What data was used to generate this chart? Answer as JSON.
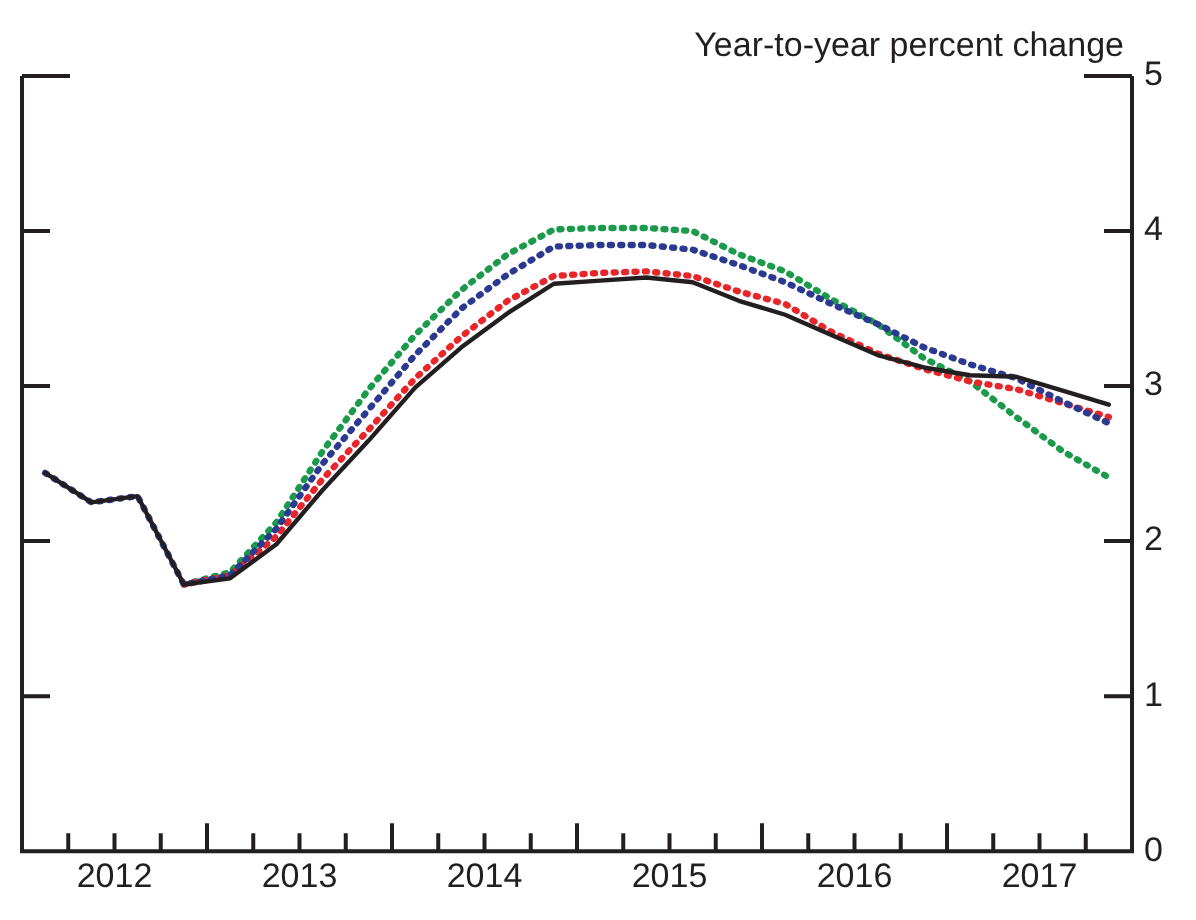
{
  "chart_data": {
    "type": "line",
    "ylabel": "Year-to-year percent change",
    "x": [
      2012.125,
      2012.375,
      2012.625,
      2012.875,
      2013.125,
      2013.375,
      2013.625,
      2013.875,
      2014.125,
      2014.375,
      2014.625,
      2014.875,
      2015.125,
      2015.375,
      2015.625,
      2015.875,
      2016.125,
      2016.375,
      2016.625,
      2016.875,
      2017.125,
      2017.375,
      2017.625,
      2017.875
    ],
    "series": [
      {
        "color": "#231f20",
        "line_style": "solid",
        "values": [
          2.44,
          2.25,
          2.29,
          1.72,
          1.76,
          1.98,
          2.33,
          2.65,
          2.99,
          3.25,
          3.47,
          3.66,
          3.68,
          3.7,
          3.67,
          3.55,
          3.46,
          3.33,
          3.2,
          3.12,
          3.07,
          3.06,
          2.97,
          2.88
        ]
      },
      {
        "color": "#2b3990",
        "line_style": "dotted",
        "values": [
          2.44,
          2.25,
          2.29,
          1.72,
          1.78,
          2.08,
          2.5,
          2.85,
          3.2,
          3.5,
          3.72,
          3.9,
          3.91,
          3.91,
          3.88,
          3.78,
          3.67,
          3.53,
          3.4,
          3.25,
          3.14,
          3.05,
          2.9,
          2.76
        ]
      },
      {
        "color": "#e8262a",
        "line_style": "dotted",
        "values": [
          null,
          null,
          null,
          1.72,
          1.78,
          2.03,
          2.4,
          2.72,
          3.05,
          3.32,
          3.55,
          3.71,
          3.73,
          3.74,
          3.71,
          3.61,
          3.53,
          3.35,
          3.21,
          3.11,
          3.03,
          2.98,
          2.89,
          2.8
        ]
      },
      {
        "color": "#1a9a4a",
        "line_style": "dotted",
        "values": [
          null,
          null,
          null,
          1.72,
          1.8,
          2.12,
          2.58,
          2.98,
          3.33,
          3.62,
          3.85,
          4.01,
          4.02,
          4.02,
          4.0,
          3.85,
          3.74,
          3.56,
          3.4,
          3.18,
          3.03,
          2.8,
          2.58,
          2.41
        ]
      }
    ],
    "xlim": [
      2012,
      2018
    ],
    "xticks": [
      {
        "value": 2012,
        "label": null
      },
      {
        "value": 2012.25,
        "label": null
      },
      {
        "value": 2012.5,
        "label": "2012"
      },
      {
        "value": 2012.75,
        "label": null
      },
      {
        "value": 2013,
        "label": null
      },
      {
        "value": 2013.25,
        "label": null
      },
      {
        "value": 2013.5,
        "label": "2013"
      },
      {
        "value": 2013.75,
        "label": null
      },
      {
        "value": 2014,
        "label": null
      },
      {
        "value": 2014.25,
        "label": null
      },
      {
        "value": 2014.5,
        "label": "2014"
      },
      {
        "value": 2014.75,
        "label": null
      },
      {
        "value": 2015,
        "label": null
      },
      {
        "value": 2015.25,
        "label": null
      },
      {
        "value": 2015.5,
        "label": "2015"
      },
      {
        "value": 2015.75,
        "label": null
      },
      {
        "value": 2016,
        "label": null
      },
      {
        "value": 2016.25,
        "label": null
      },
      {
        "value": 2016.5,
        "label": "2016"
      },
      {
        "value": 2016.75,
        "label": null
      },
      {
        "value": 2017,
        "label": null
      },
      {
        "value": 2017.25,
        "label": null
      },
      {
        "value": 2017.5,
        "label": "2017"
      },
      {
        "value": 2017.75,
        "label": null
      },
      {
        "value": 2018,
        "label": null
      }
    ],
    "ylim": [
      0,
      5
    ],
    "yticks": [
      0,
      1,
      2,
      3,
      4,
      5
    ],
    "grid": false,
    "legend": false,
    "marker": "none"
  }
}
